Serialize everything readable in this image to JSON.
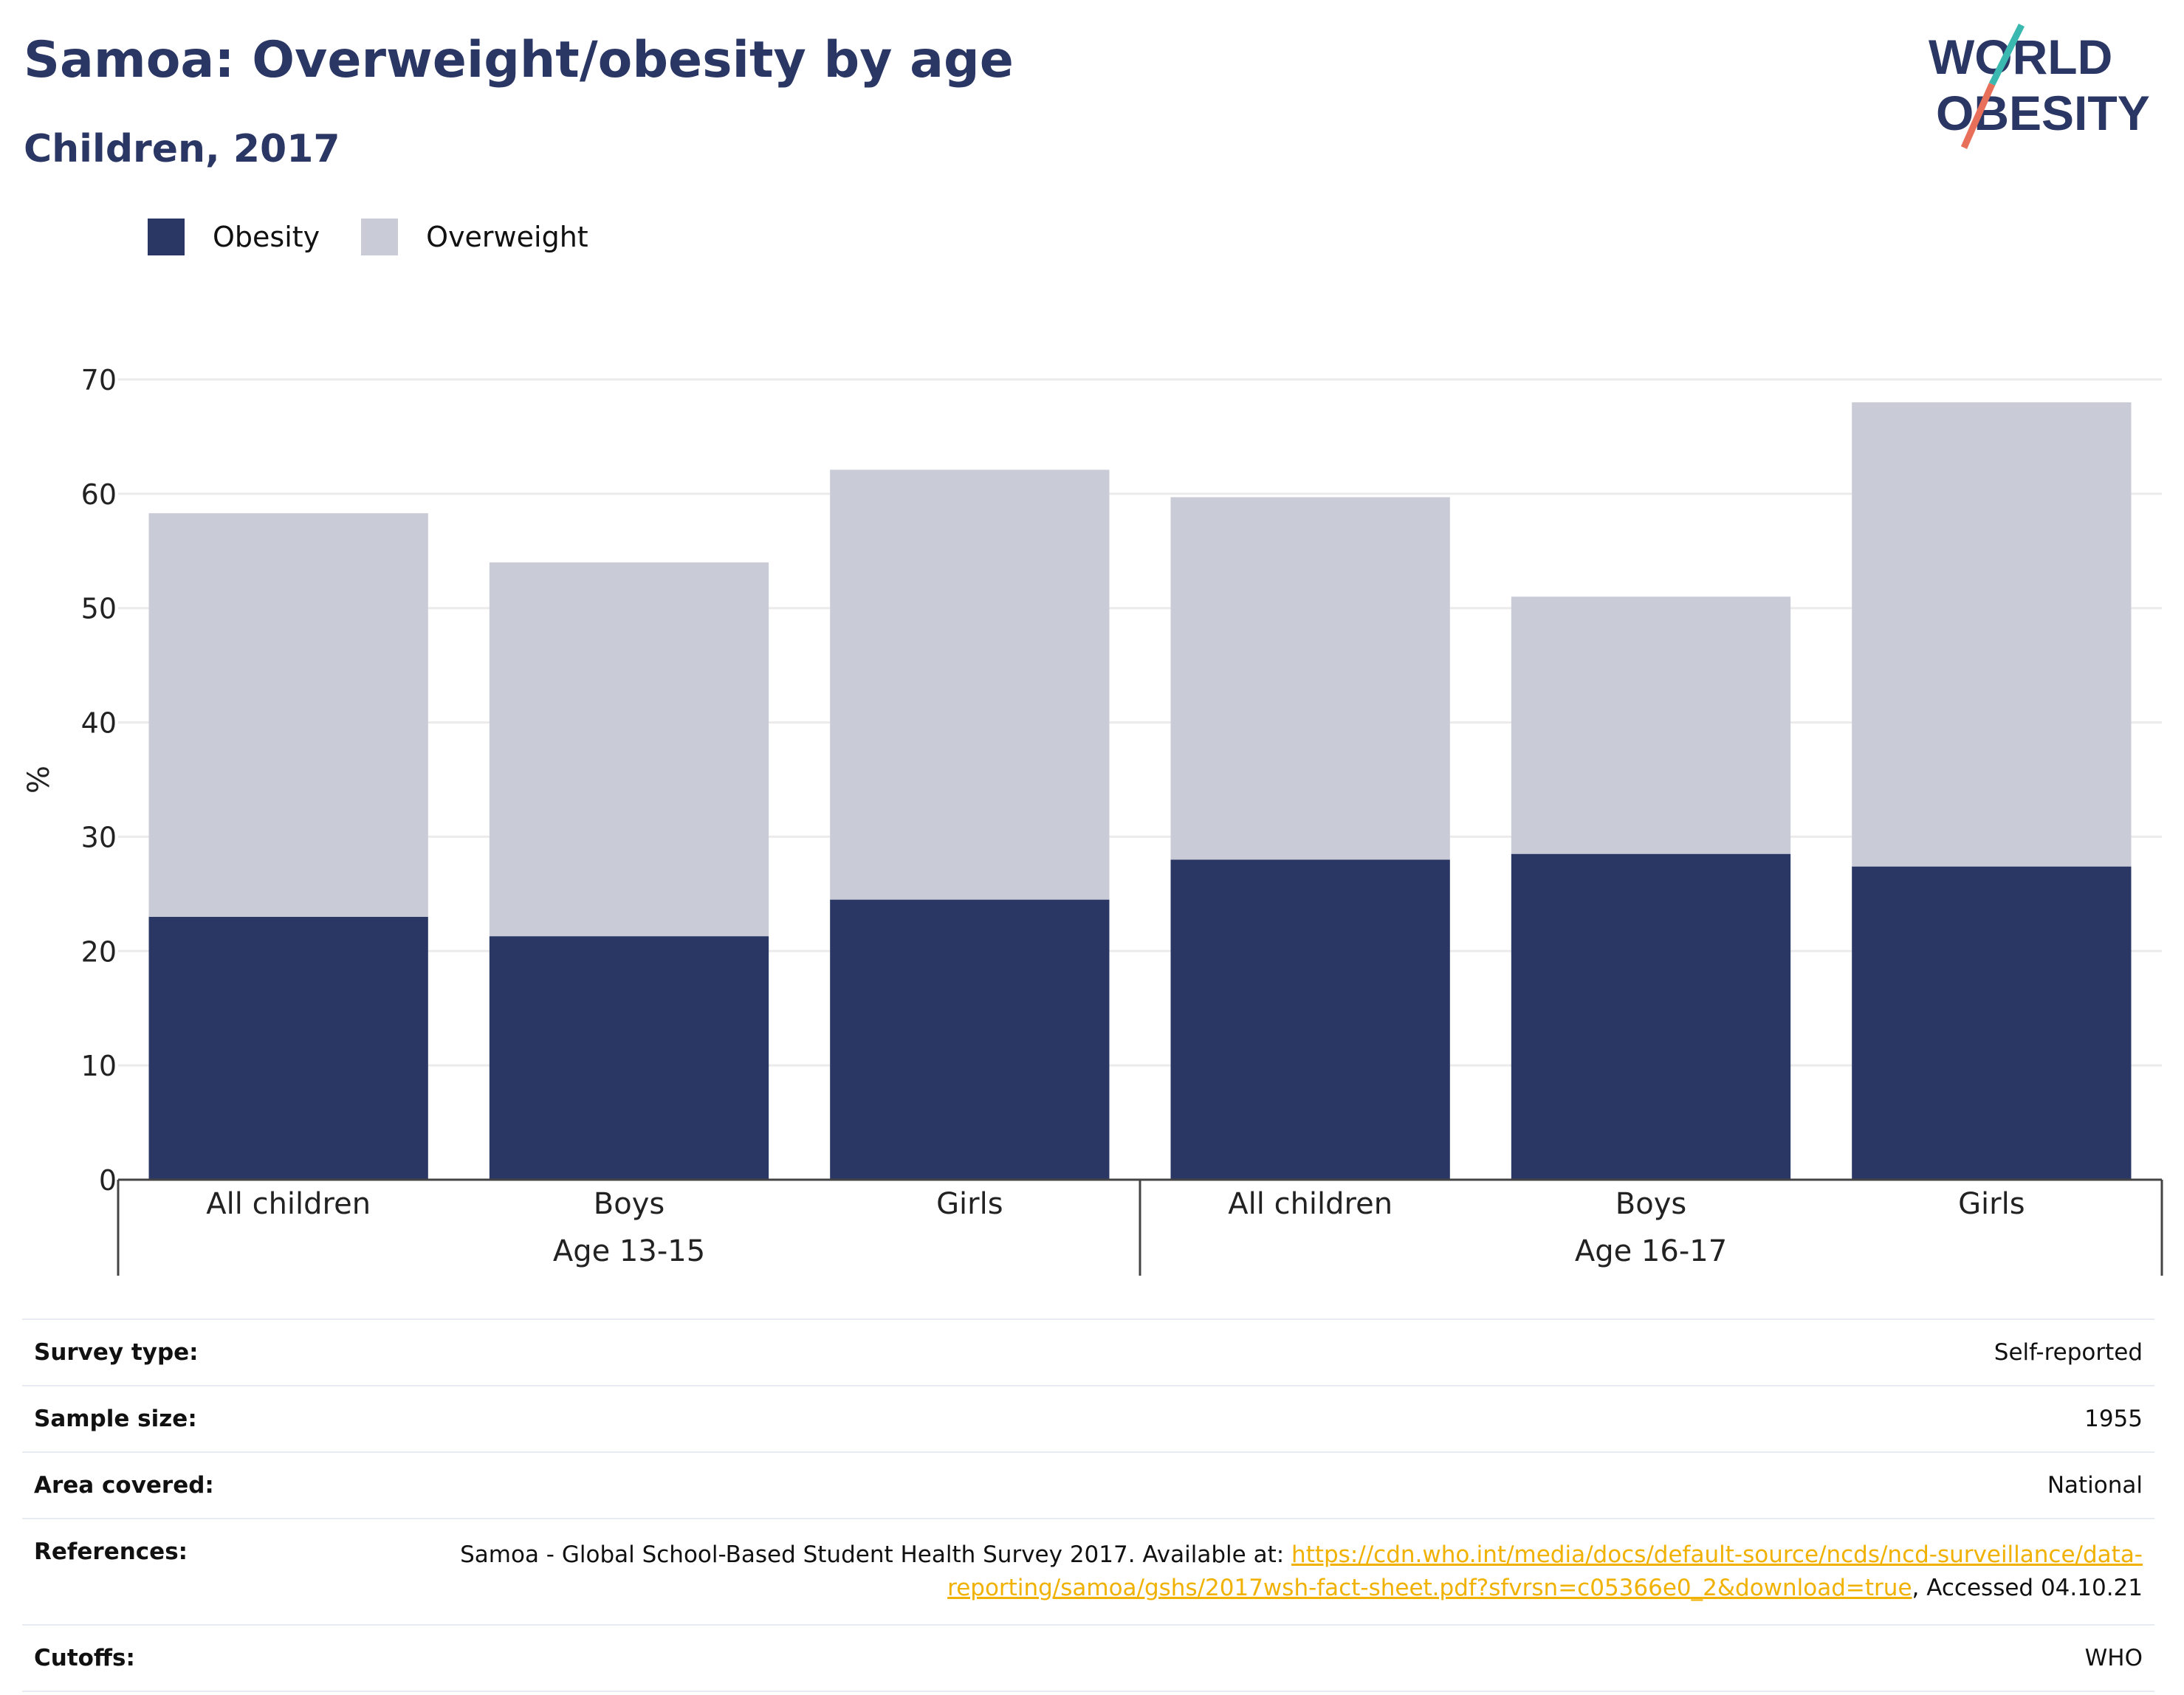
{
  "title": "Samoa: Overweight/obesity by age",
  "subtitle": "Children, 2017",
  "logo": {
    "line1": "WORLD",
    "line2": "OBESITY"
  },
  "colors": {
    "obesity": "#2a3663",
    "overweight": "#c9cbd7",
    "accent_teal": "#3bb8b0",
    "accent_coral": "#e8705a",
    "link": "#f0b100"
  },
  "legend": [
    {
      "label": "Obesity",
      "color": "#2a3663"
    },
    {
      "label": "Overweight",
      "color": "#c9cbd7"
    }
  ],
  "chart_data": {
    "type": "bar",
    "stacked": true,
    "ylabel": "%",
    "ylim": [
      0,
      70
    ],
    "yticks": [
      0,
      10,
      20,
      30,
      40,
      50,
      60,
      70
    ],
    "grid": true,
    "categories": [
      "All children",
      "Boys",
      "Girls",
      "All children",
      "Boys",
      "Girls"
    ],
    "groups": [
      {
        "label": "Age 13-15",
        "count": 3
      },
      {
        "label": "Age 16-17",
        "count": 3
      }
    ],
    "series": [
      {
        "name": "Obesity",
        "values": [
          23,
          21.3,
          24.5,
          28,
          28.5,
          27.4
        ]
      },
      {
        "name": "Overweight",
        "values": [
          35.3,
          32.7,
          37.6,
          31.7,
          22.5,
          40.6
        ]
      }
    ]
  },
  "meta": [
    {
      "key": "Survey type:",
      "value": "Self-reported"
    },
    {
      "key": "Sample size:",
      "value": "1955"
    },
    {
      "key": "Area covered:",
      "value": "National"
    },
    {
      "key": "References:",
      "pre": "Samoa - Global School-Based Student Health Survey 2017. Available at: ",
      "link": "https://cdn.who.int/media/docs/default-source/ncds/ncd-surveillance/data-reporting/samoa/gshs/2017wsh-fact-sheet.pdf?sfvrsn=c05366e0_2&download=true",
      "post": ", Accessed 04.10.21"
    },
    {
      "key": "Cutoffs:",
      "value": "WHO"
    }
  ]
}
